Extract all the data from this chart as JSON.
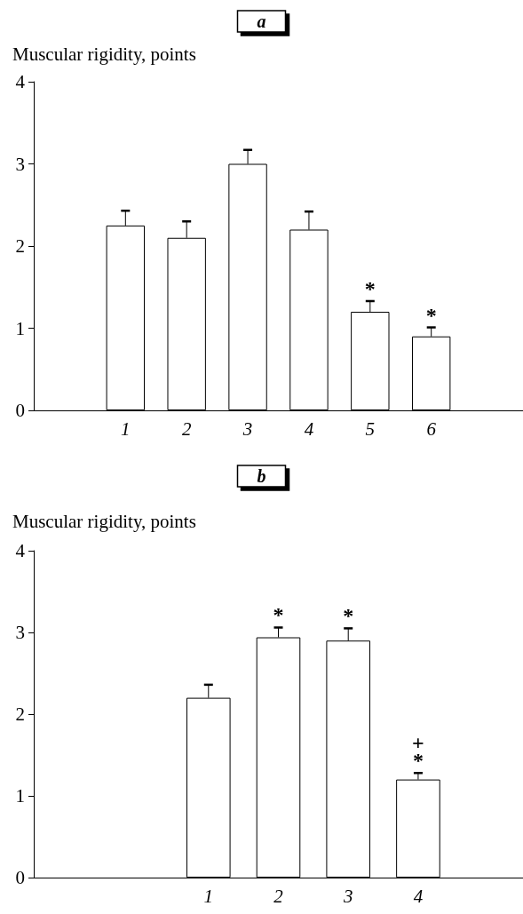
{
  "chart_data": [
    {
      "type": "bar",
      "title": "a",
      "ylabel": "Muscular rigidity, points",
      "categories": [
        null,
        "1",
        "2",
        "3",
        "4",
        "5",
        "6",
        null
      ],
      "values": [
        null,
        2.25,
        2.1,
        3.0,
        2.2,
        1.2,
        0.9,
        null
      ],
      "errors": [
        null,
        [
          2.25,
          2.43
        ],
        [
          2.1,
          2.3
        ],
        [
          3.0,
          3.17
        ],
        [
          2.2,
          2.42
        ],
        [
          1.2,
          1.33
        ],
        [
          0.9,
          1.01
        ],
        null
      ],
      "color": "#ffffff",
      "ylim": [
        0,
        4
      ],
      "yticks": [
        0,
        1,
        2,
        3,
        4
      ],
      "grid": false,
      "annotations": [
        {
          "text": "*",
          "x": "5",
          "y": 1.2
        },
        {
          "text": "*",
          "x": "6",
          "y": 0.9
        }
      ]
    },
    {
      "type": "bar",
      "title": "b",
      "ylabel": "Muscular rigidity, points",
      "categories": [
        null,
        null,
        "1",
        "2",
        "3",
        "4",
        null
      ],
      "values": [
        null,
        null,
        2.2,
        2.94,
        2.9,
        1.2,
        null
      ],
      "errors": [
        null,
        null,
        [
          2.2,
          2.36
        ],
        [
          2.94,
          3.06
        ],
        [
          2.9,
          3.05
        ],
        [
          1.2,
          1.28
        ],
        null
      ],
      "color": "#ffffff",
      "ylim": [
        0,
        4
      ],
      "yticks": [
        0,
        1,
        2,
        3,
        4
      ],
      "grid": false,
      "annotations": [
        {
          "text": "*",
          "x": "2",
          "y": 2.94
        },
        {
          "text": "*",
          "x": "3",
          "y": 2.9
        },
        {
          "text": "*",
          "x": "4",
          "y": 1.2
        },
        {
          "text": "+",
          "x": "4",
          "y": 1.2
        }
      ]
    }
  ]
}
